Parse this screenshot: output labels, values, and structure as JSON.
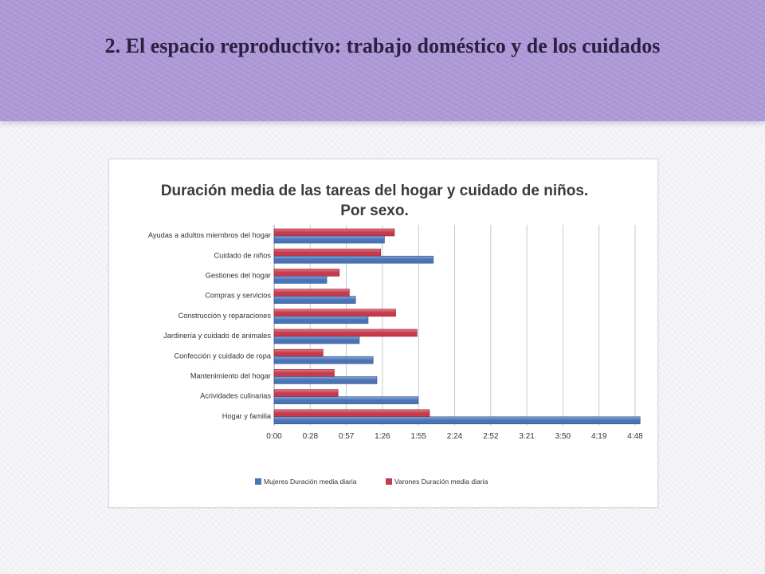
{
  "slide": {
    "title": "2. El espacio reproductivo: trabajo doméstico y de los cuidados"
  },
  "colors": {
    "header": "#ad98d6",
    "mujeres": "#4a73b8",
    "varones": "#c7394b",
    "grid": "#c8c8c8"
  },
  "chart_data": {
    "type": "bar",
    "orientation": "horizontal",
    "title": [
      "Duración media de las tareas del hogar y cuidado de niños.",
      "Por sexo."
    ],
    "categories": [
      "Ayudas a adultos miembros del hogar",
      "Cuidado de niños",
      "Gestiones del hogar",
      "Compras y servicios",
      "Construcción y reparaciones",
      "Jardinería y cuidado de animales",
      "Confección y cuidado de ropa",
      "Mantenimiento del hogar",
      "Acrividades culinarias",
      "Hogar y familia"
    ],
    "series": [
      {
        "name": "Mujeres Duración media diaria",
        "color": "#4a73b8",
        "values": [
          88,
          127,
          42,
          65,
          75,
          68,
          79,
          82,
          115,
          292
        ]
      },
      {
        "name": "Varones Duración media diaria",
        "color": "#c7394b",
        "values": [
          96,
          85,
          52,
          60,
          97,
          114,
          39,
          48,
          51,
          124
        ]
      }
    ],
    "value_unit": "minutes",
    "xlim": [
      0,
      288
    ],
    "xticks": [
      0,
      28.8,
      57.6,
      86.4,
      115.2,
      144,
      172.8,
      201.6,
      230.4,
      259.2,
      288
    ],
    "xtick_labels": [
      "0:00",
      "0:28",
      "0:57",
      "1:26",
      "1:55",
      "2:24",
      "2:52",
      "3:21",
      "3:50",
      "4:19",
      "4:48"
    ],
    "grid": true,
    "legend_position": "bottom"
  }
}
